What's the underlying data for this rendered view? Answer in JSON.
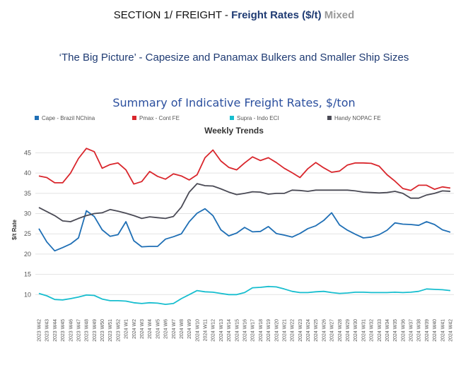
{
  "header": {
    "section_prefix": "SECTION 1/ FREIGHT - ",
    "section_bold": "Freight Rates ($/t)",
    "section_suffix": " Mixed",
    "subtitle": "‘The Big Picture’ - Capesize and Panamax Bulkers and Smaller Ship Sizes"
  },
  "chart_data": {
    "type": "line",
    "title": "Summary of Indicative Freight Rates, $/ton",
    "subtitle": "Weekly Trends",
    "xlabel": "",
    "ylabel": "$/t Rate",
    "ylim": [
      5,
      47
    ],
    "yticks": [
      10,
      15,
      20,
      25,
      30,
      35,
      40,
      45
    ],
    "grid": true,
    "legend_position": "top",
    "x": [
      "2023 W42",
      "2023 W43",
      "2023 W44",
      "2023 W45",
      "2023 W46",
      "2023 W47",
      "2023 W48",
      "2023 W49",
      "2023 W50",
      "2023 W51",
      "2023 W52",
      "2024 W1",
      "2024 W2",
      "2024 W3",
      "2024 W4",
      "2024 W5",
      "2024 W6",
      "2024 W7",
      "2024 W8",
      "2024 W9",
      "2024 W10",
      "2024 W11",
      "2024 W12",
      "2024 W13",
      "2024 W14",
      "2024 W15",
      "2024 W16",
      "2024 W17",
      "2024 W18",
      "2024 W19",
      "2024 W20",
      "2024 W21",
      "2024 W22",
      "2024 W23",
      "2024 W24",
      "2024 W25",
      "2024 W26",
      "2024 W27",
      "2024 W28",
      "2024 W29",
      "2024 W30",
      "2024 W31",
      "2024 W32",
      "2024 W33",
      "2024 W34",
      "2024 W35",
      "2024 W36",
      "2024 W37",
      "2024 W38",
      "2024 W39",
      "2024 W40",
      "2024 W41",
      "2024 W42"
    ],
    "series": [
      {
        "name": "Cape - Brazil NChina",
        "color": "#1f6fb5",
        "values": [
          26.3,
          23.0,
          20.8,
          21.6,
          22.5,
          24.0,
          30.7,
          29.3,
          26.0,
          24.4,
          24.8,
          28.0,
          23.3,
          21.8,
          21.9,
          21.9,
          23.7,
          24.3,
          25.0,
          28.0,
          30.1,
          31.2,
          29.5,
          26.0,
          24.5,
          25.2,
          26.6,
          25.5,
          25.6,
          26.8,
          25.1,
          24.7,
          24.2,
          25.1,
          26.3,
          27.0,
          28.3,
          30.2,
          27.2,
          25.9,
          24.9,
          24.0,
          24.2,
          24.8,
          25.9,
          27.7,
          27.4,
          27.3,
          27.1,
          28.0,
          27.3,
          26.0,
          25.4
        ]
      },
      {
        "name": "Pmax - Cont FE",
        "color": "#d9262c",
        "values": [
          39.3,
          38.9,
          37.6,
          37.6,
          40.0,
          43.6,
          46.1,
          45.3,
          41.2,
          42.1,
          42.5,
          40.8,
          37.3,
          37.9,
          40.4,
          39.2,
          38.5,
          39.8,
          39.3,
          38.3,
          39.6,
          43.8,
          45.7,
          43.0,
          41.4,
          40.8,
          42.5,
          44.0,
          43.1,
          43.8,
          42.6,
          41.2,
          40.1,
          38.9,
          41.1,
          42.6,
          41.3,
          40.2,
          40.5,
          42.0,
          42.5,
          42.5,
          42.4,
          41.7,
          39.6,
          38.0,
          36.2,
          35.7,
          37.0,
          37.0,
          36.0,
          36.6,
          36.3
        ]
      },
      {
        "name": "Supra - Indo ECI",
        "color": "#17becf",
        "values": [
          10.3,
          9.7,
          8.8,
          8.7,
          9.0,
          9.4,
          9.9,
          9.8,
          8.9,
          8.5,
          8.5,
          8.4,
          8.0,
          7.8,
          8.0,
          7.9,
          7.6,
          7.8,
          9.0,
          10.0,
          11.0,
          10.7,
          10.6,
          10.3,
          10.0,
          10.0,
          10.5,
          11.7,
          11.8,
          12.0,
          11.9,
          11.4,
          10.8,
          10.5,
          10.5,
          10.7,
          10.8,
          10.5,
          10.3,
          10.4,
          10.6,
          10.6,
          10.5,
          10.5,
          10.5,
          10.6,
          10.5,
          10.6,
          10.8,
          11.4,
          11.3,
          11.2,
          11.0
        ]
      },
      {
        "name": "Handy NOPAC FE",
        "color": "#4a4a55",
        "values": [
          31.5,
          30.5,
          29.5,
          28.2,
          28.0,
          28.8,
          29.5,
          30.0,
          30.2,
          31.0,
          30.6,
          30.1,
          29.5,
          28.8,
          29.2,
          29.0,
          28.8,
          29.3,
          31.6,
          35.3,
          37.4,
          36.9,
          36.8,
          36.1,
          35.3,
          34.7,
          35.0,
          35.4,
          35.3,
          34.8,
          35.0,
          35.0,
          35.8,
          35.7,
          35.5,
          35.8,
          35.8,
          35.8,
          35.8,
          35.8,
          35.6,
          35.3,
          35.2,
          35.1,
          35.2,
          35.5,
          35.0,
          33.8,
          33.8,
          34.6,
          35.0,
          35.6,
          35.5
        ]
      }
    ]
  }
}
